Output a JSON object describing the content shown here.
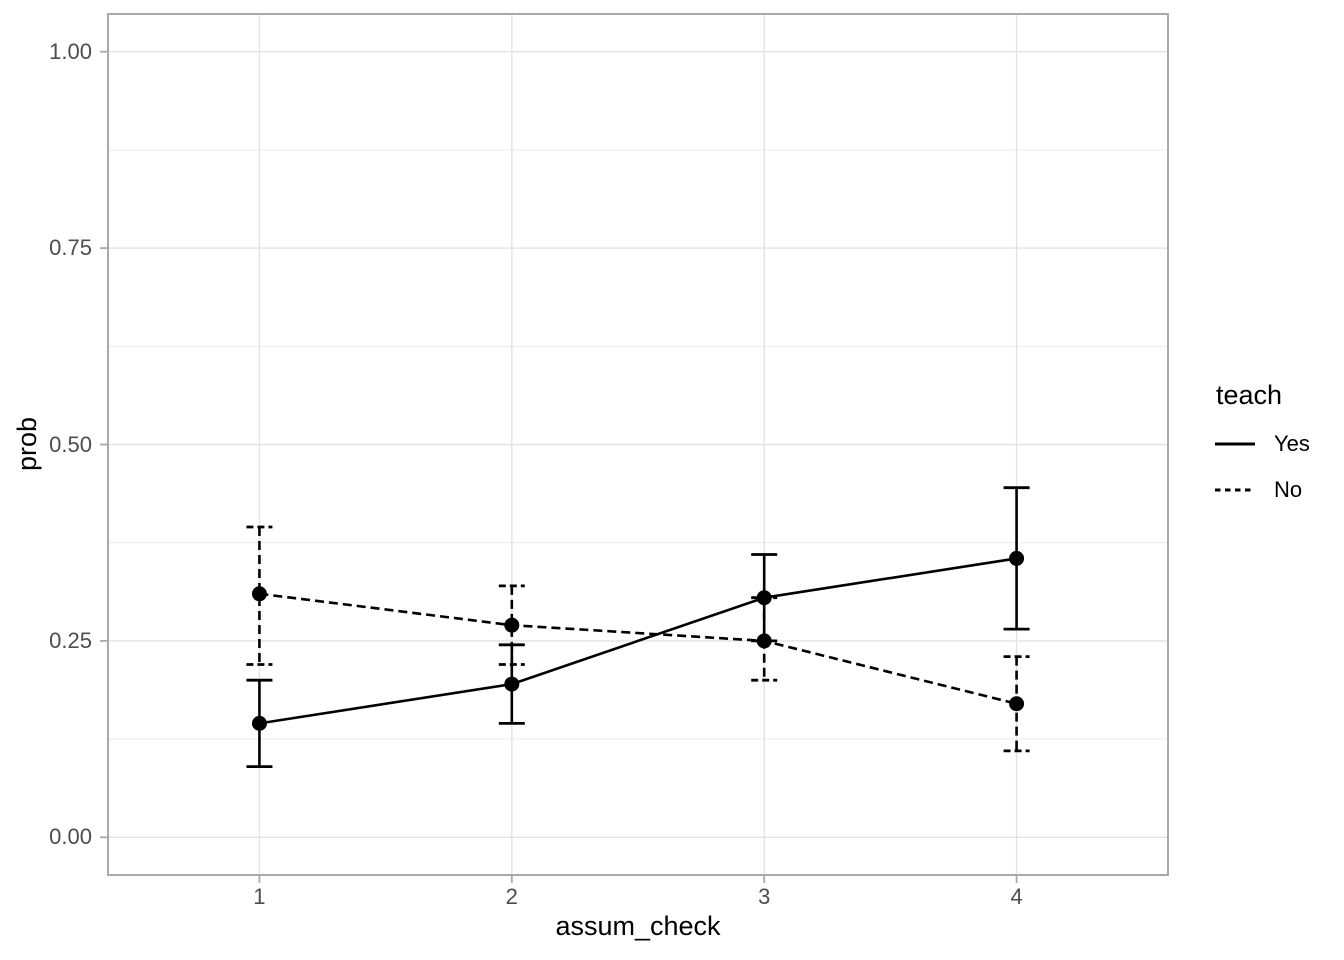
{
  "chart_data": {
    "type": "line",
    "error_bars": true,
    "xlabel": "assum_check",
    "ylabel": "prob",
    "x": [
      1,
      2,
      3,
      4
    ],
    "x_tick_values": [
      1,
      2,
      3,
      4
    ],
    "x_tick_labels": [
      "1",
      "2",
      "3",
      "4"
    ],
    "y_tick_values": [
      0,
      0.25,
      0.5,
      0.75,
      1.0
    ],
    "y_tick_labels": [
      "0.00",
      "0.25",
      "0.50",
      "0.75",
      "1.00"
    ],
    "y_minor_tick_values": [
      0.125,
      0.375,
      0.625,
      0.875
    ],
    "xlim": [
      0.4,
      4.6
    ],
    "ylim": [
      -0.048,
      1.048
    ],
    "grid": "on",
    "legend": {
      "title": "teach",
      "position": "right",
      "entries": [
        {
          "label": "Yes",
          "linestyle": "solid"
        },
        {
          "label": "No",
          "linestyle": "dashed"
        }
      ]
    },
    "series": [
      {
        "name": "Yes",
        "linestyle": "solid",
        "color": "#000000",
        "values": [
          0.145,
          0.195,
          0.305,
          0.355
        ],
        "ci_low": [
          0.09,
          0.145,
          0.25,
          0.265
        ],
        "ci_high": [
          0.2,
          0.245,
          0.36,
          0.445
        ]
      },
      {
        "name": "No",
        "linestyle": "dashed",
        "color": "#000000",
        "values": [
          0.31,
          0.27,
          0.25,
          0.17
        ],
        "ci_low": [
          0.22,
          0.22,
          0.2,
          0.11
        ],
        "ci_high": [
          0.395,
          0.32,
          0.305,
          0.23
        ]
      }
    ],
    "colors": {
      "series": "#000000",
      "tick_label": "#4D4D4D",
      "axis_title": "#000000",
      "grid_major": "#E3E3E3",
      "grid_minor": "#EDEDED",
      "panel_border": "#A9A9A9",
      "tick_mark": "#A9A9A9",
      "background": "#FFFFFF"
    }
  }
}
